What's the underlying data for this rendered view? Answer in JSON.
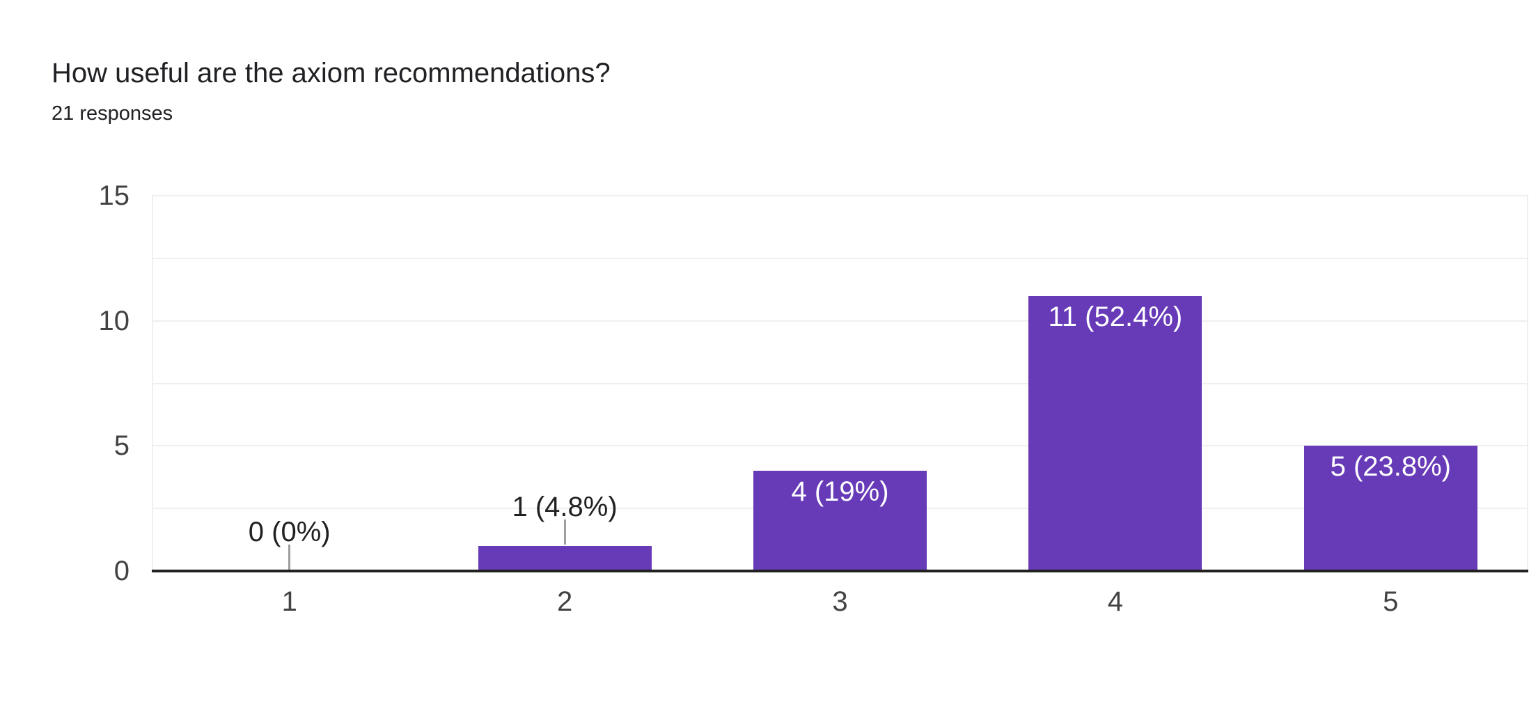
{
  "header": {
    "title": "How useful are the axiom recommendations?",
    "subtitle": "21 responses"
  },
  "chart_data": {
    "type": "bar",
    "title": "How useful are the axiom recommendations?",
    "subtitle": "21 responses",
    "categories": [
      "1",
      "2",
      "3",
      "4",
      "5"
    ],
    "values": [
      0,
      1,
      4,
      11,
      5
    ],
    "point_labels": [
      "0 (0%)",
      "1 (4.8%)",
      "4 (19%)",
      "11 (52.4%)",
      "5 (23.8%)"
    ],
    "label_placement": [
      "outside",
      "outside",
      "inside",
      "inside",
      "inside"
    ],
    "xlabel": "",
    "ylabel": "",
    "ylim": [
      0,
      15
    ],
    "yticks": [
      0,
      5,
      10,
      15
    ],
    "grid_step": 2.5,
    "grid": true,
    "legend": "none"
  },
  "colors": {
    "bar": "#673ab7",
    "axis_line": "#212121",
    "gridline": "#efefef",
    "tick_label": "#424242",
    "data_label_dark": "#212121",
    "data_label_light": "#ffffff",
    "connector": "#9e9e9e",
    "title_text": "#202124",
    "background": "#ffffff"
  }
}
